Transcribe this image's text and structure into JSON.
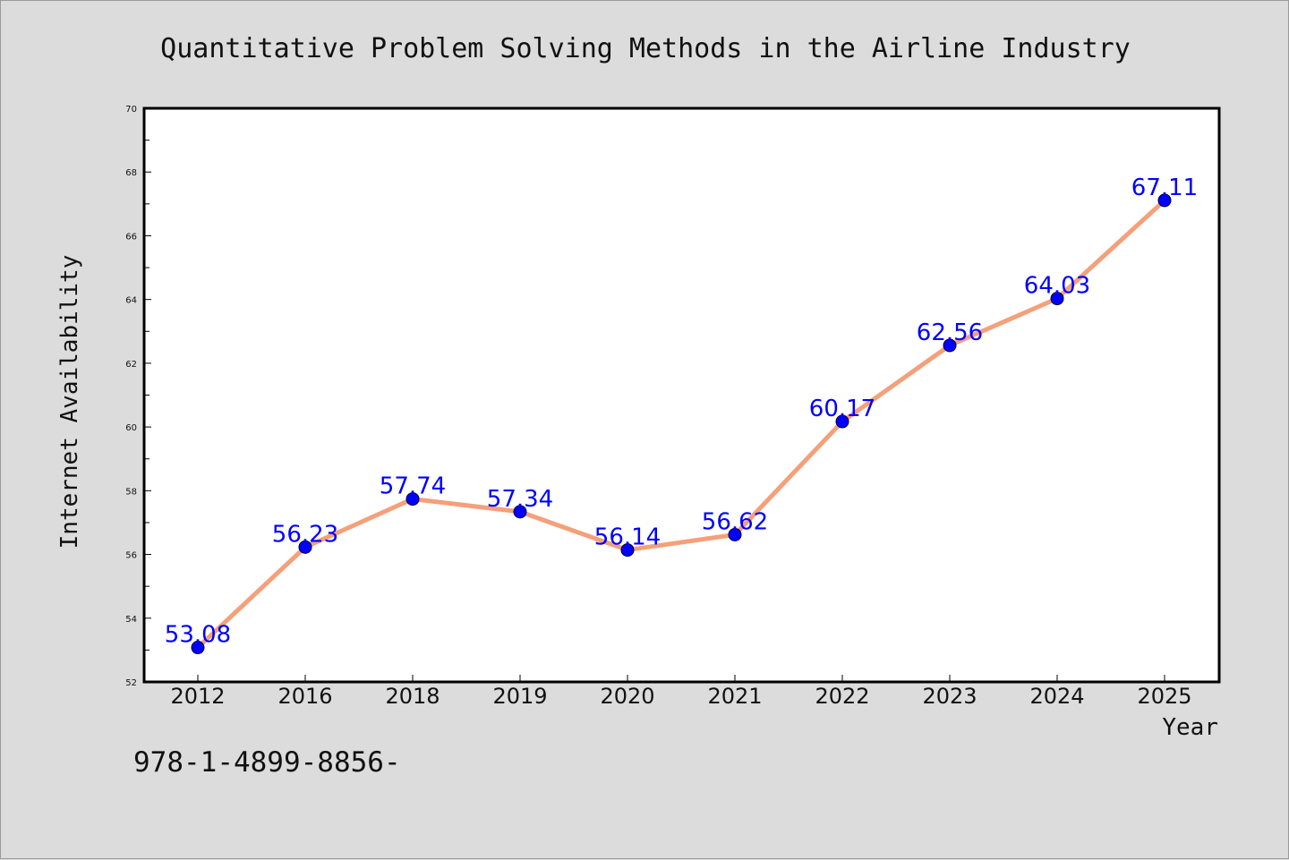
{
  "chart_data": {
    "type": "line",
    "title": "Quantitative Problem Solving Methods in the Airline Industry",
    "xlabel": "Year",
    "ylabel": "Internet Availability",
    "categories": [
      "2012",
      "2016",
      "2018",
      "2019",
      "2020",
      "2021",
      "2022",
      "2023",
      "2024",
      "2025"
    ],
    "series": [
      {
        "values": [
          53.08,
          56.23,
          57.74,
          57.34,
          56.14,
          56.62,
          60.17,
          62.56,
          64.03,
          67.11
        ],
        "data_labels": [
          "53.08",
          "56.23",
          "57.74",
          "57.34",
          "56.14",
          "56.62",
          "60.17",
          "62.56",
          "64.03",
          "67.11"
        ],
        "line_color": "#f4a07a",
        "marker_color": "#0000ff"
      }
    ],
    "ylim": [
      52,
      70
    ],
    "yticks": [
      "52",
      "54",
      "56",
      "58",
      "60",
      "62",
      "64",
      "66",
      "68",
      "70"
    ],
    "grid": false,
    "legend": "none"
  },
  "footer": {
    "isbn_text": "978-1-4899-8856-"
  },
  "colors": {
    "background": "#dcdcdc",
    "plot_area": "#ffffff",
    "line": "#f4a07a",
    "marker": "#0000ff",
    "data_label": "#0000ff"
  }
}
